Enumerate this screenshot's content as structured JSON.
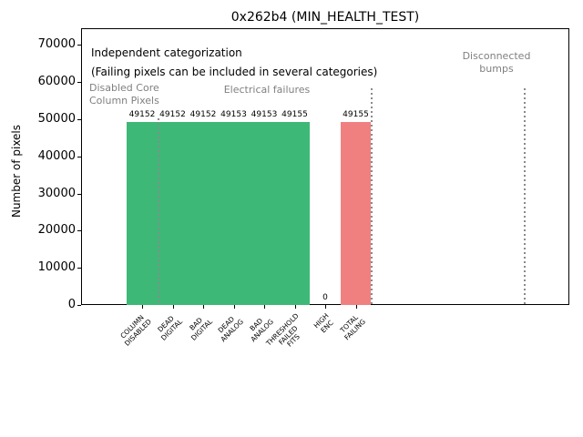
{
  "figure": {
    "title": "0x262b4 (MIN_HEALTH_TEST)",
    "ylabel": "Number of pixels"
  },
  "annotations": {
    "heading": "Independent categorization",
    "subheading": "(Failing pixels can be included in several categories)",
    "regions": [
      {
        "name": "disabled-core-column-pixels",
        "lines": [
          "Disabled Core",
          "Column Pixels"
        ]
      },
      {
        "name": "electrical-failures",
        "lines": [
          "Electrical failures"
        ]
      },
      {
        "name": "disconnected-bumps",
        "lines": [
          "Disconnected",
          "bumps"
        ]
      }
    ]
  },
  "chart_data": {
    "type": "bar",
    "title": "0x262b4 (MIN_HEALTH_TEST)",
    "xlabel": "",
    "ylabel": "Number of pixels",
    "xlim": [
      -2,
      14
    ],
    "ylim": [
      0,
      74500
    ],
    "grid": false,
    "legend": null,
    "yticks": [
      0,
      10000,
      20000,
      30000,
      40000,
      50000,
      60000,
      70000
    ],
    "categories": [
      [
        "COLUMN",
        "DISABLED"
      ],
      [
        "DEAD",
        "DIGITAL"
      ],
      [
        "BAD",
        "DIGITAL"
      ],
      [
        "DEAD",
        "ANALOG"
      ],
      [
        "BAD",
        "ANALOG"
      ],
      [
        "THRESHOLD",
        "FAILED",
        "FITS"
      ],
      [
        "HIGH",
        "ENC"
      ],
      [
        "TOTAL",
        "FAILING"
      ]
    ],
    "values": [
      49152,
      49152,
      49152,
      49153,
      49153,
      49155,
      0,
      49155
    ],
    "bar_value_labels": [
      "49152",
      "49152",
      "49152",
      "49153",
      "49153",
      "49155",
      "0",
      "49155"
    ],
    "bar_colors": [
      "#3eb876",
      "#3eb876",
      "#3eb876",
      "#3eb876",
      "#3eb876",
      "#3eb876",
      "#3eb876",
      "#f08080"
    ],
    "separator_lines_x": [
      0.5,
      7.5,
      12.5
    ],
    "separator_style": "dotted",
    "colors": {
      "green_bar": "#3eb876",
      "red_bar": "#f08080",
      "region_text": "#808080",
      "separator": "#8a8a8a",
      "axis": "#000000"
    }
  }
}
